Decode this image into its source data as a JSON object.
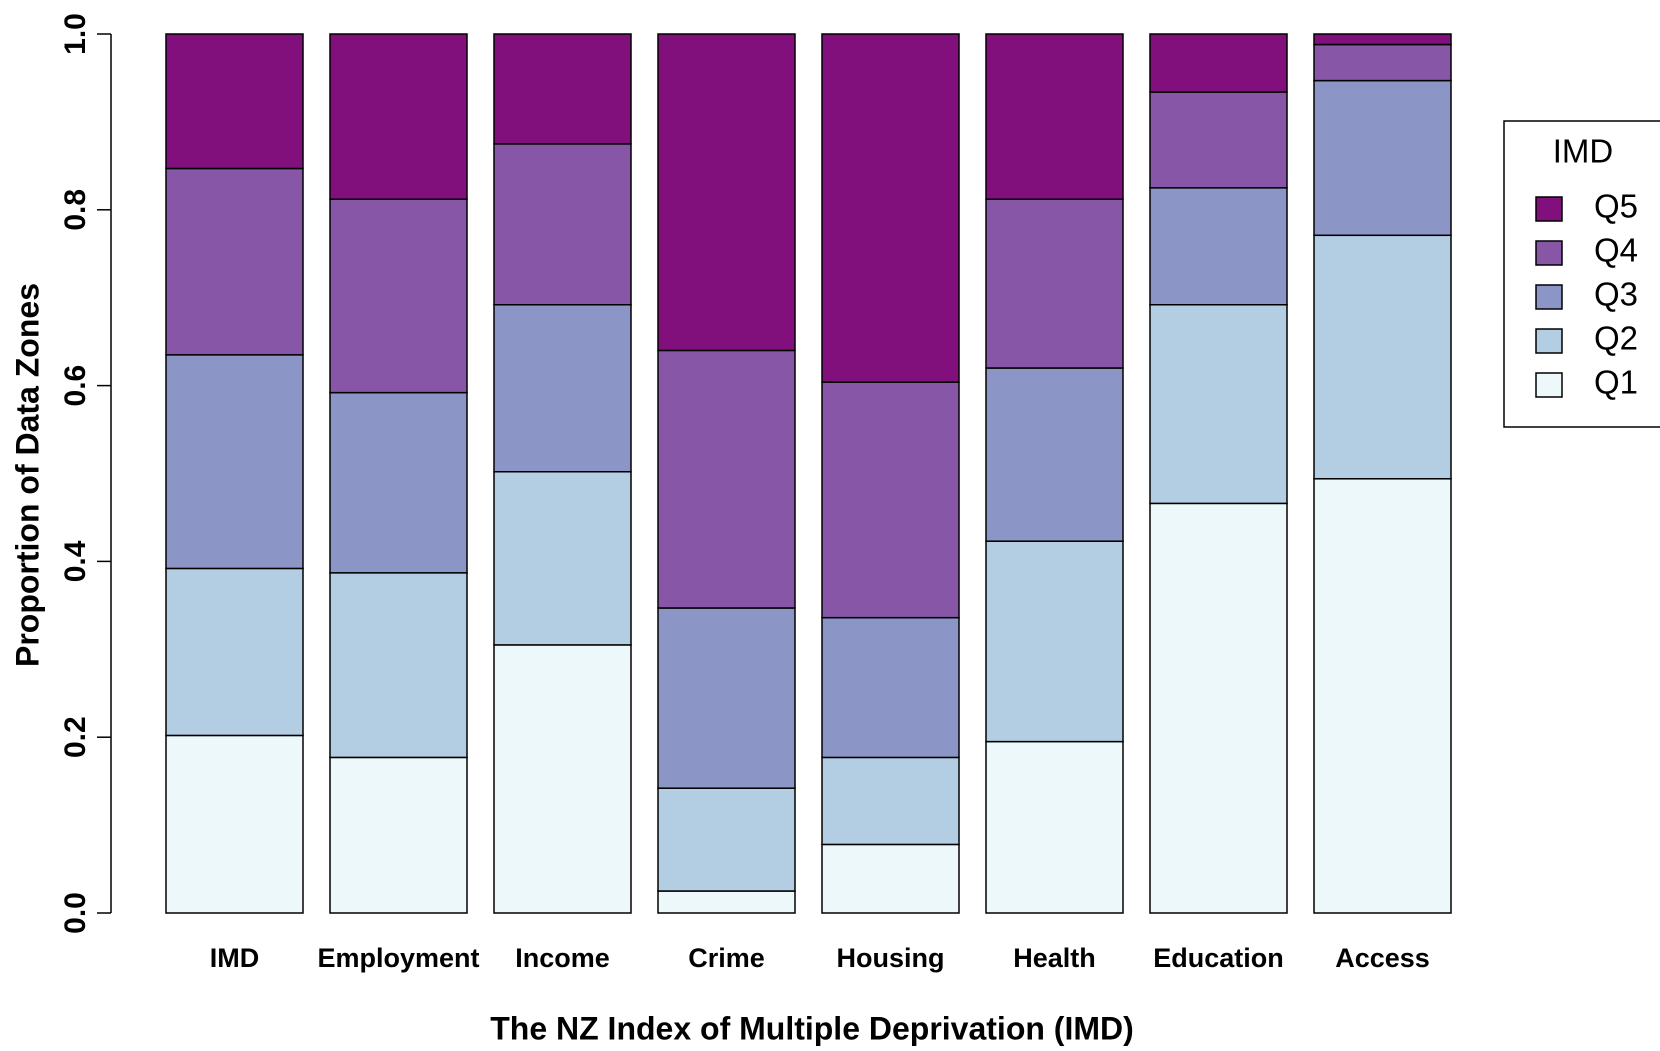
{
  "chart_data": {
    "type": "stacked_bar",
    "xlabel": "The NZ Index of Multiple Deprivation (IMD)",
    "ylabel": "Proportion of Data Zones",
    "categories": [
      "IMD",
      "Employment",
      "Income",
      "Crime",
      "Housing",
      "Health",
      "Education",
      "Access"
    ],
    "series": [
      {
        "name": "Q1",
        "color": "#edf8fb",
        "values": [
          0.202,
          0.177,
          0.305,
          0.025,
          0.078,
          0.195,
          0.466,
          0.494
        ]
      },
      {
        "name": "Q2",
        "color": "#b3cde3",
        "values": [
          0.19,
          0.21,
          0.197,
          0.117,
          0.099,
          0.228,
          0.226,
          0.277
        ]
      },
      {
        "name": "Q3",
        "color": "#8c96c6",
        "values": [
          0.243,
          0.205,
          0.19,
          0.205,
          0.159,
          0.197,
          0.133,
          0.176
        ]
      },
      {
        "name": "Q4",
        "color": "#8856a7",
        "values": [
          0.212,
          0.22,
          0.183,
          0.293,
          0.268,
          0.192,
          0.109,
          0.041
        ]
      },
      {
        "name": "Q5",
        "color": "#810f7c",
        "values": [
          0.153,
          0.188,
          0.125,
          0.36,
          0.396,
          0.188,
          0.066,
          0.012
        ]
      }
    ],
    "legend_title": "IMD",
    "legend_position": "right",
    "ylim": [
      0,
      1
    ],
    "yticks": [
      {
        "value": 0,
        "label": "0.0"
      },
      0.2,
      0.4,
      0.6,
      0.8,
      {
        "value": 1,
        "label": "1.0"
      }
    ],
    "grid": false
  }
}
